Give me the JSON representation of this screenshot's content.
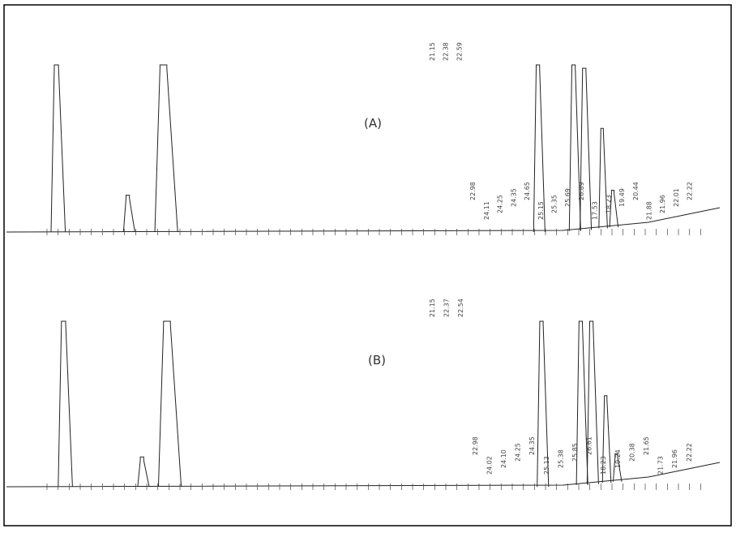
{
  "chart_data": [
    {
      "type": "line",
      "title": "(A)",
      "xlabel": "",
      "ylabel": "",
      "peak_labels": [
        "21.15",
        "22.38",
        "22.59",
        "22.98",
        "24.11",
        "24.25",
        "24.35",
        "24.65",
        "25.15",
        "25.35",
        "25.69",
        "26.89",
        "17.53",
        "18.23",
        "19.49",
        "20.44",
        "21.88",
        "21.96",
        "22.01",
        "22.22"
      ],
      "peaks": [
        {
          "x": 0.07,
          "h": 1.0,
          "w": 0.005
        },
        {
          "x": 0.17,
          "h": 0.22,
          "w": 0.004
        },
        {
          "x": 0.22,
          "h": 1.0,
          "w": 0.008
        },
        {
          "x": 0.745,
          "h": 1.0,
          "w": 0.004
        },
        {
          "x": 0.795,
          "h": 1.0,
          "w": 0.004
        },
        {
          "x": 0.81,
          "h": 0.98,
          "w": 0.004
        },
        {
          "x": 0.835,
          "h": 0.62,
          "w": 0.003
        },
        {
          "x": 0.85,
          "h": 0.25,
          "w": 0.003
        }
      ]
    },
    {
      "type": "line",
      "title": "(B)",
      "xlabel": "",
      "ylabel": "",
      "peak_labels": [
        "21.15",
        "22.37",
        "22.54",
        "22.98",
        "24.02",
        "24.10",
        "24.25",
        "24.35",
        "25.13",
        "25.38",
        "25.85",
        "26.61",
        "18.23",
        "19.24",
        "20.38",
        "21.65",
        "21.73",
        "21.96",
        "22.22"
      ],
      "peaks": [
        {
          "x": 0.08,
          "h": 1.0,
          "w": 0.005
        },
        {
          "x": 0.19,
          "h": 0.18,
          "w": 0.004
        },
        {
          "x": 0.225,
          "h": 1.0,
          "w": 0.008
        },
        {
          "x": 0.75,
          "h": 1.0,
          "w": 0.004
        },
        {
          "x": 0.805,
          "h": 1.0,
          "w": 0.004
        },
        {
          "x": 0.82,
          "h": 1.0,
          "w": 0.004
        },
        {
          "x": 0.84,
          "h": 0.55,
          "w": 0.003
        },
        {
          "x": 0.855,
          "h": 0.2,
          "w": 0.003
        }
      ]
    }
  ]
}
